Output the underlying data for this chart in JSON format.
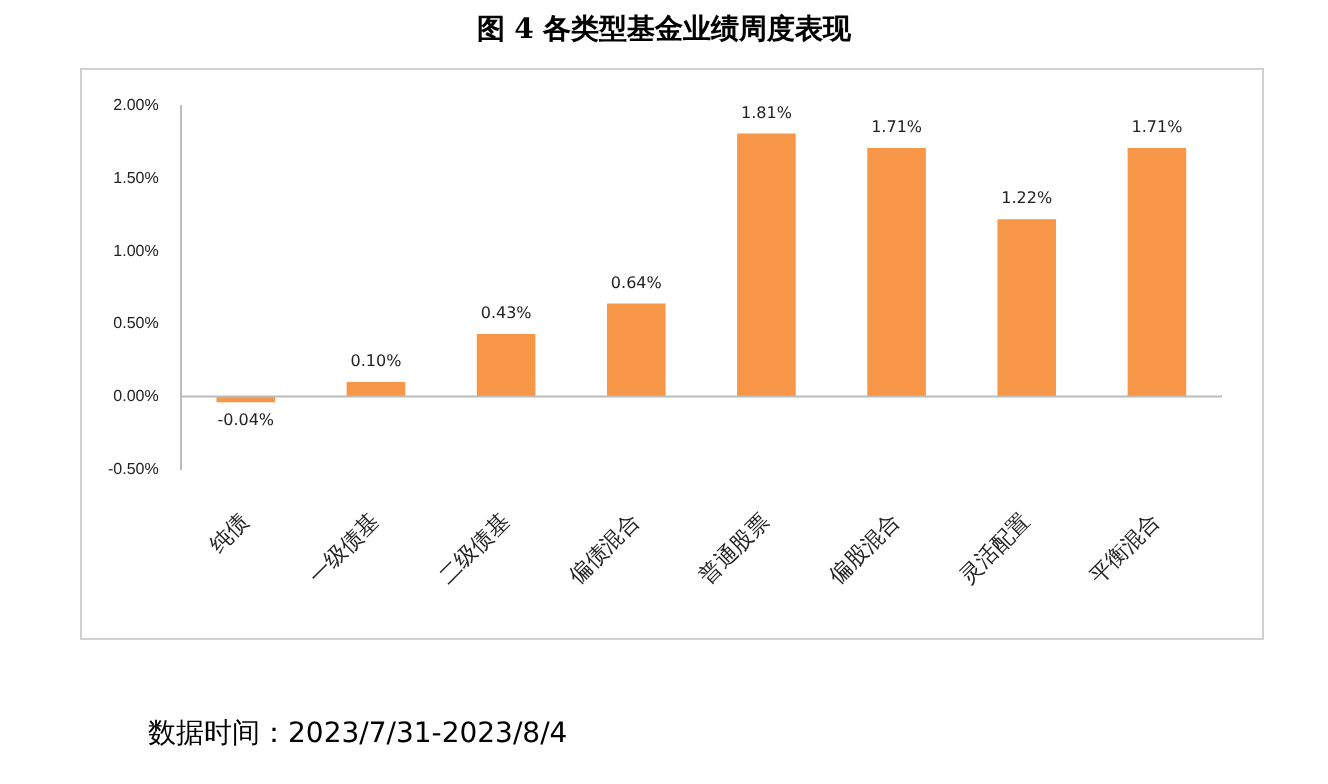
{
  "chart_data": {
    "type": "bar",
    "title": "图 4  各类型基金业绩周度表现",
    "categories": [
      "纯债",
      "一级债基",
      "二级债基",
      "偏债混合",
      "普通股票",
      "偏股混合",
      "灵活配置",
      "平衡混合"
    ],
    "values": [
      -0.04,
      0.1,
      0.43,
      0.64,
      1.81,
      1.71,
      1.22,
      1.71
    ],
    "value_labels": [
      "-0.04%",
      "0.10%",
      "0.43%",
      "0.64%",
      "1.81%",
      "1.71%",
      "1.22%",
      "1.71%"
    ],
    "color": "#f79646",
    "ylim": [
      -0.5,
      2.0
    ],
    "yticks": [
      {
        "value": -0.5,
        "label": "-0.50%"
      },
      {
        "value": 0,
        "label": "0.00%"
      },
      {
        "value": 0.5,
        "label": "0.50%"
      },
      {
        "value": 1.0,
        "label": "1.00%"
      },
      {
        "value": 1.5,
        "label": "1.50%"
      },
      {
        "value": 2.0,
        "label": "2.00%"
      }
    ],
    "grid": false,
    "legend": false,
    "ref_lines": [
      {
        "axis": "y",
        "value": 0,
        "color": "#bbbbbb"
      }
    ],
    "annotations": [
      "数据时间：2023/7/31-2023/8/4"
    ]
  }
}
